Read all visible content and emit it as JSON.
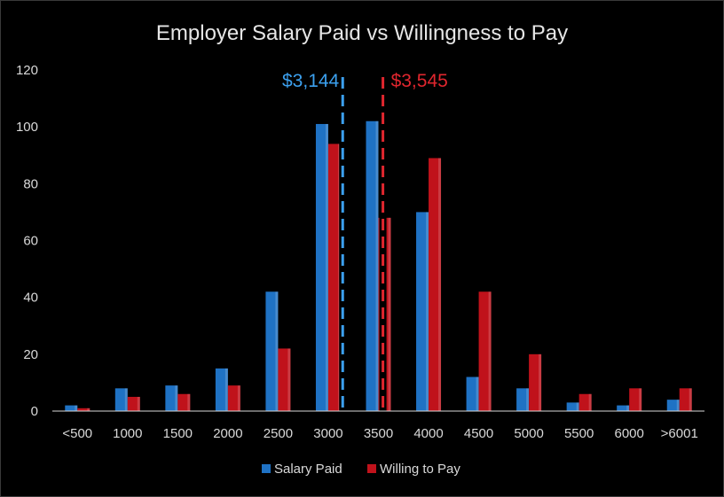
{
  "chart_data": {
    "type": "bar",
    "title": "Employer Salary Paid vs Willingness to Pay",
    "categories": [
      "<500",
      "1000",
      "1500",
      "2000",
      "2500",
      "3000",
      "3500",
      "4000",
      "4500",
      "5000",
      "5500",
      "6000",
      ">6001"
    ],
    "series": [
      {
        "name": "Salary Paid",
        "color": "#1f72c4",
        "values": [
          2,
          8,
          9,
          15,
          42,
          101,
          102,
          70,
          12,
          8,
          3,
          2,
          4
        ]
      },
      {
        "name": "Willing to Pay",
        "color": "#c0121b",
        "values": [
          1,
          5,
          6,
          9,
          22,
          94,
          68,
          89,
          42,
          20,
          6,
          8,
          8
        ]
      }
    ],
    "ylim": [
      0,
      120
    ],
    "yticks": [
      0,
      20,
      40,
      60,
      80,
      100,
      120
    ],
    "grid": false,
    "legend_position": "bottom",
    "annotations": [
      {
        "label": "$3,144",
        "x": 3144,
        "color": "#3ca0ee",
        "series": "Salary Paid"
      },
      {
        "label": "$3,545",
        "x": 3545,
        "color": "#e0262e",
        "series": "Willing to Pay"
      }
    ]
  }
}
